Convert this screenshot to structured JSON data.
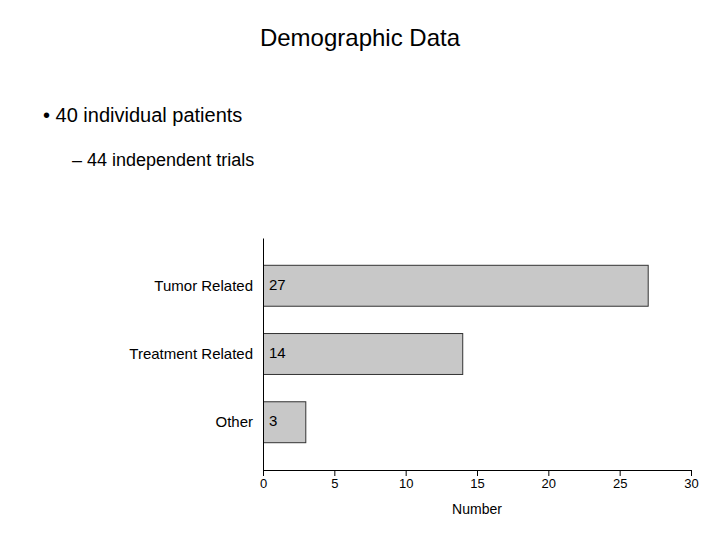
{
  "chart_data": {
    "type": "bar",
    "orientation": "horizontal",
    "title": "Demographic Data",
    "annotations": [
      "• 40 individual patients",
      "– 44 independent trials"
    ],
    "categories": [
      "Other",
      "Treatment Related",
      "Tumor Related"
    ],
    "values": [
      3,
      14,
      27
    ],
    "color": "#c8c8c8",
    "data_labels": true,
    "xlabel": "Number",
    "xlim": [
      0,
      30
    ],
    "xticks": [
      0,
      5,
      10,
      15,
      20,
      25,
      30
    ],
    "grid": false
  }
}
